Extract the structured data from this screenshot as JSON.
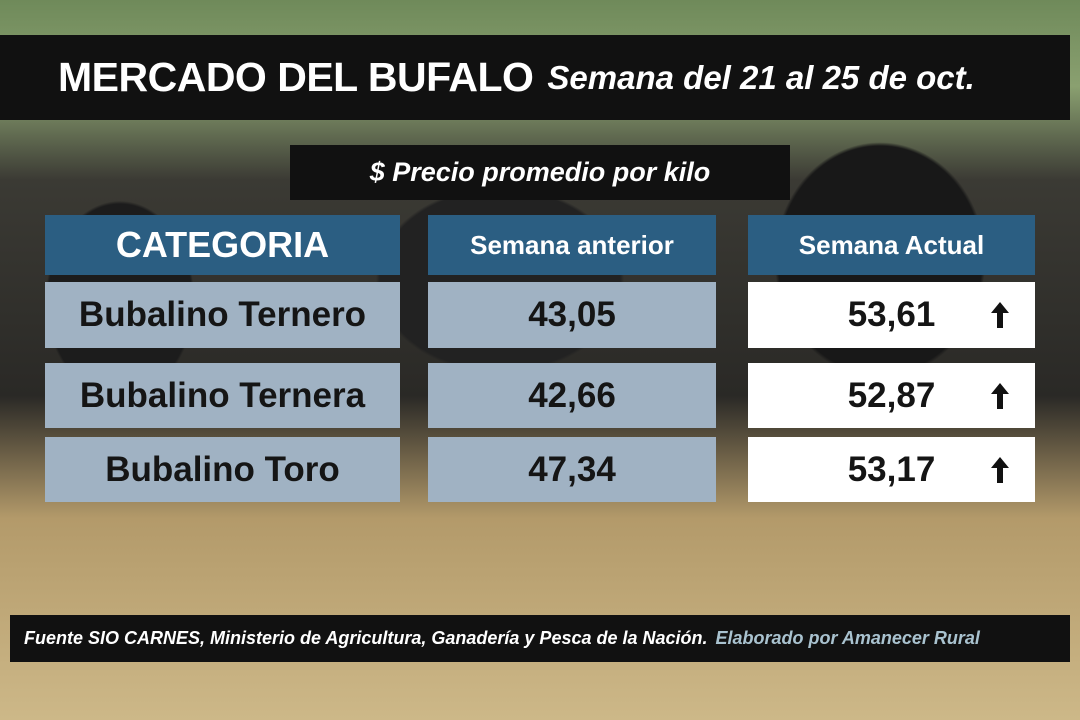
{
  "header": {
    "title": "MERCADO DEL BUFALO",
    "subtitle": "Semana del 21 al 25 de oct."
  },
  "caption": "$ Precio promedio por kilo",
  "table": {
    "columns": [
      "CATEGORIA",
      "Semana anterior",
      "Semana Actual"
    ],
    "rows": [
      [
        "Bubalino Ternero",
        "43,05",
        "53,61"
      ],
      [
        "Bubalino Ternera",
        "42,66",
        "52,87"
      ],
      [
        "Bubalino Toro",
        "47,34",
        "53,17"
      ]
    ]
  },
  "footer": {
    "source": "Fuente SIO CARNES,  Ministerio de Agricultura, Ganadería y Pesca de la Nación.",
    "credit": "Elaborado por  Amanecer Rural"
  }
}
